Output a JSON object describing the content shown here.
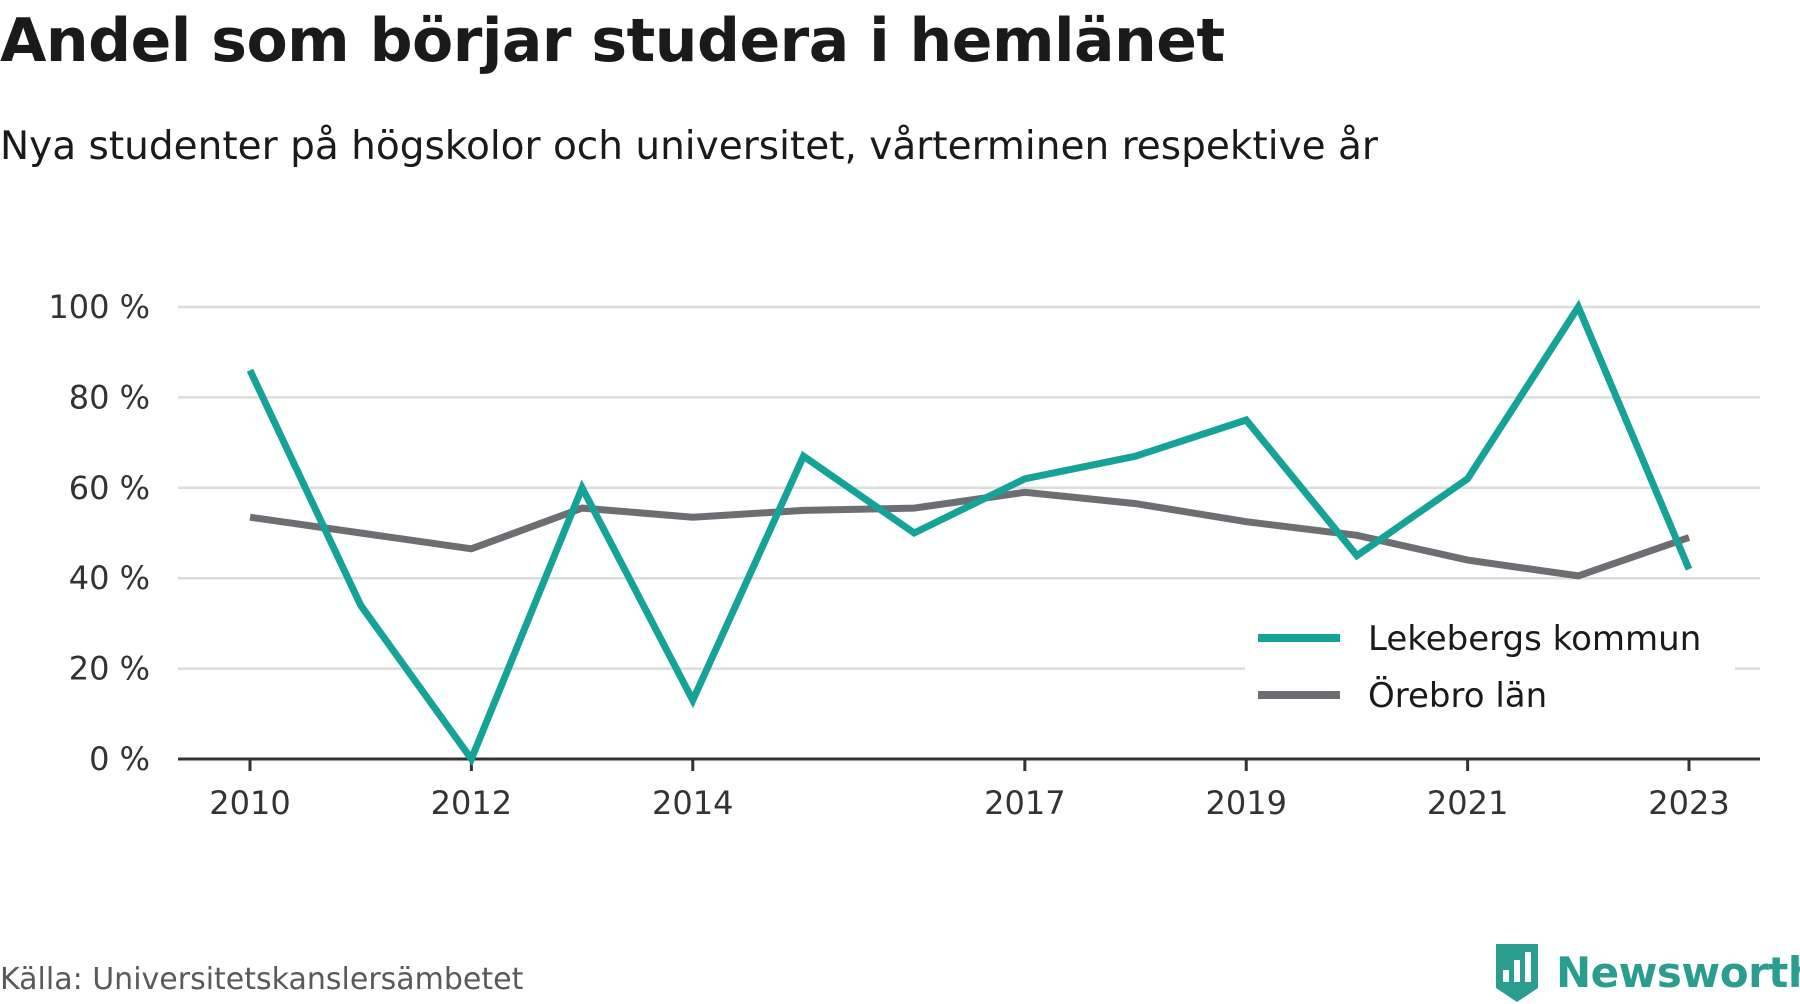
{
  "source": "Källa: Universitetskanslersämbetet",
  "brand": "Newsworthy",
  "chart_data": {
    "type": "line",
    "title": "Andel som börjar studera i hemlänet",
    "subtitle": "Nya studenter på högskolor och universitet, vårterminen respektive år",
    "xlabel": "",
    "ylabel": "",
    "x": [
      2010,
      2011,
      2012,
      2013,
      2014,
      2015,
      2016,
      2017,
      2018,
      2019,
      2020,
      2021,
      2022,
      2023
    ],
    "x_ticks": [
      "2010",
      "2012",
      "2014",
      "2017",
      "2019",
      "2021",
      "2023"
    ],
    "y_ticks": [
      "0 %",
      "20 %",
      "40 %",
      "60 %",
      "80 %",
      "100 %"
    ],
    "ylim": [
      0,
      100
    ],
    "grid": true,
    "legend_position": "bottom-right",
    "series": [
      {
        "name": "Lekebergs kommun",
        "color": "#16a397",
        "values": [
          86,
          34,
          0,
          60,
          13,
          67,
          50,
          62,
          67,
          75,
          45,
          62,
          100,
          42
        ]
      },
      {
        "name": "Örebro län",
        "color": "#6e6d72",
        "values": [
          53.5,
          50,
          46.5,
          55.5,
          53.5,
          55,
          55.5,
          59,
          56.5,
          52.5,
          49.5,
          44,
          40.5,
          49
        ]
      }
    ]
  }
}
